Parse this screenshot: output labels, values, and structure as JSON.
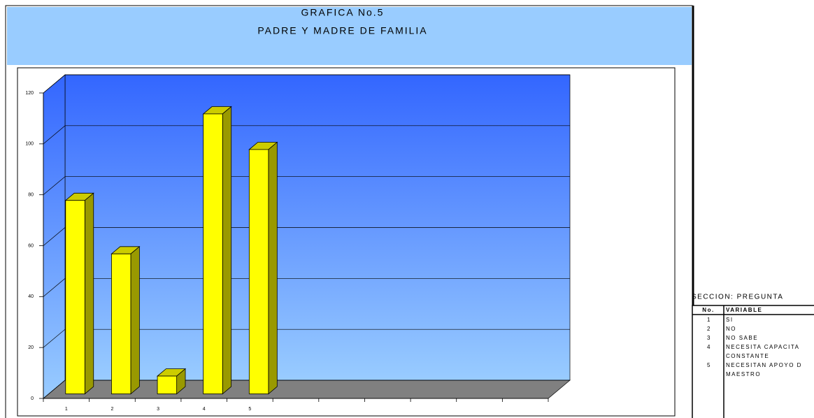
{
  "chart_data": {
    "type": "bar3d",
    "title": "GRAFICA No.5",
    "subtitle": "PADRE Y MADRE DE FAMILIA",
    "categories": [
      "1",
      "2",
      "3",
      "4",
      "5",
      null,
      null,
      null,
      null,
      null,
      null
    ],
    "values": [
      76,
      55,
      7,
      110,
      96,
      null,
      null,
      null,
      null,
      null,
      null
    ],
    "color": "#ffff00",
    "ylim": [
      0,
      120
    ],
    "yticks": [
      0,
      20,
      40,
      60,
      80,
      100,
      120
    ],
    "grid": true
  },
  "side_table": {
    "title": "SECCION:  PREGUNTA",
    "headers": [
      "No.",
      "VARIABLE"
    ],
    "rows": [
      {
        "no": "1",
        "variable": [
          "SI"
        ]
      },
      {
        "no": "2",
        "variable": [
          "NO"
        ]
      },
      {
        "no": "3",
        "variable": [
          "NO SABE"
        ]
      },
      {
        "no": "4",
        "variable": [
          "NECESITA CAPACITA",
          "CONSTANTE"
        ]
      },
      {
        "no": "5",
        "variable": [
          "NECESITAN APOYO D",
          "MAESTRO"
        ]
      }
    ]
  }
}
